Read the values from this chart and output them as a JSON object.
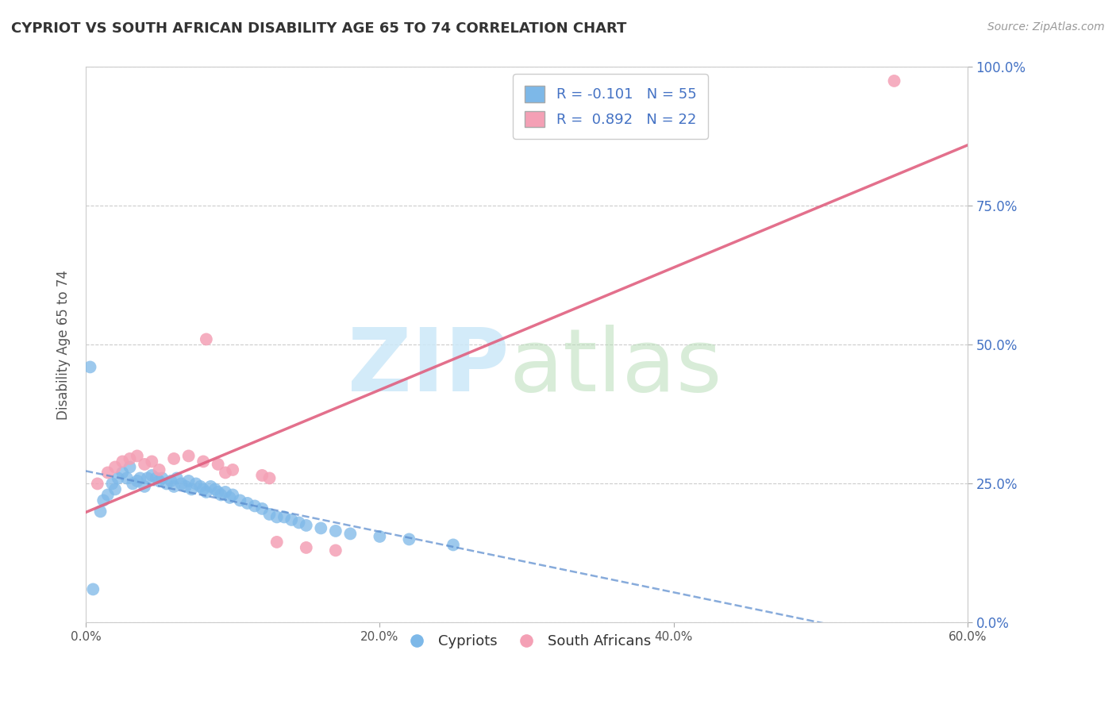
{
  "title": "CYPRIOT VS SOUTH AFRICAN DISABILITY AGE 65 TO 74 CORRELATION CHART",
  "source": "Source: ZipAtlas.com",
  "ylabel": "Disability Age 65 to 74",
  "watermark_zip": "ZIP",
  "watermark_atlas": "atlas",
  "xmin": 0.0,
  "xmax": 0.6,
  "ymin": 0.0,
  "ymax": 1.0,
  "xtick_vals": [
    0.0,
    0.2,
    0.4,
    0.6
  ],
  "ytick_vals": [
    0.0,
    0.25,
    0.5,
    0.75,
    1.0
  ],
  "ytick_labels": [
    "0.0%",
    "25.0%",
    "50.0%",
    "75.0%",
    "100.0%"
  ],
  "cypriot_color": "#7db8e8",
  "sa_color": "#f4a0b5",
  "cypriot_line_color": "#5588cc",
  "sa_line_color": "#e06080",
  "cypriot_x": [
    0.005,
    0.01,
    0.012,
    0.015,
    0.018,
    0.02,
    0.022,
    0.025,
    0.028,
    0.03,
    0.032,
    0.035,
    0.037,
    0.04,
    0.042,
    0.045,
    0.048,
    0.05,
    0.052,
    0.055,
    0.058,
    0.06,
    0.062,
    0.065,
    0.068,
    0.07,
    0.072,
    0.075,
    0.078,
    0.08,
    0.082,
    0.085,
    0.088,
    0.09,
    0.092,
    0.095,
    0.098,
    0.1,
    0.105,
    0.11,
    0.115,
    0.12,
    0.125,
    0.13,
    0.135,
    0.14,
    0.145,
    0.15,
    0.16,
    0.17,
    0.18,
    0.2,
    0.22,
    0.25,
    0.003
  ],
  "cypriot_y": [
    0.06,
    0.2,
    0.22,
    0.23,
    0.25,
    0.24,
    0.26,
    0.27,
    0.26,
    0.28,
    0.25,
    0.255,
    0.26,
    0.245,
    0.26,
    0.265,
    0.26,
    0.255,
    0.26,
    0.25,
    0.255,
    0.245,
    0.26,
    0.25,
    0.245,
    0.255,
    0.24,
    0.25,
    0.245,
    0.24,
    0.235,
    0.245,
    0.24,
    0.235,
    0.23,
    0.235,
    0.225,
    0.23,
    0.22,
    0.215,
    0.21,
    0.205,
    0.195,
    0.19,
    0.19,
    0.185,
    0.18,
    0.175,
    0.17,
    0.165,
    0.16,
    0.155,
    0.15,
    0.14,
    0.46
  ],
  "sa_x": [
    0.008,
    0.015,
    0.02,
    0.025,
    0.03,
    0.035,
    0.04,
    0.045,
    0.05,
    0.06,
    0.07,
    0.08,
    0.082,
    0.09,
    0.095,
    0.1,
    0.12,
    0.125,
    0.13,
    0.15,
    0.17,
    0.55
  ],
  "sa_y": [
    0.25,
    0.27,
    0.28,
    0.29,
    0.295,
    0.3,
    0.285,
    0.29,
    0.275,
    0.295,
    0.3,
    0.29,
    0.51,
    0.285,
    0.27,
    0.275,
    0.265,
    0.26,
    0.145,
    0.135,
    0.13,
    0.975
  ]
}
